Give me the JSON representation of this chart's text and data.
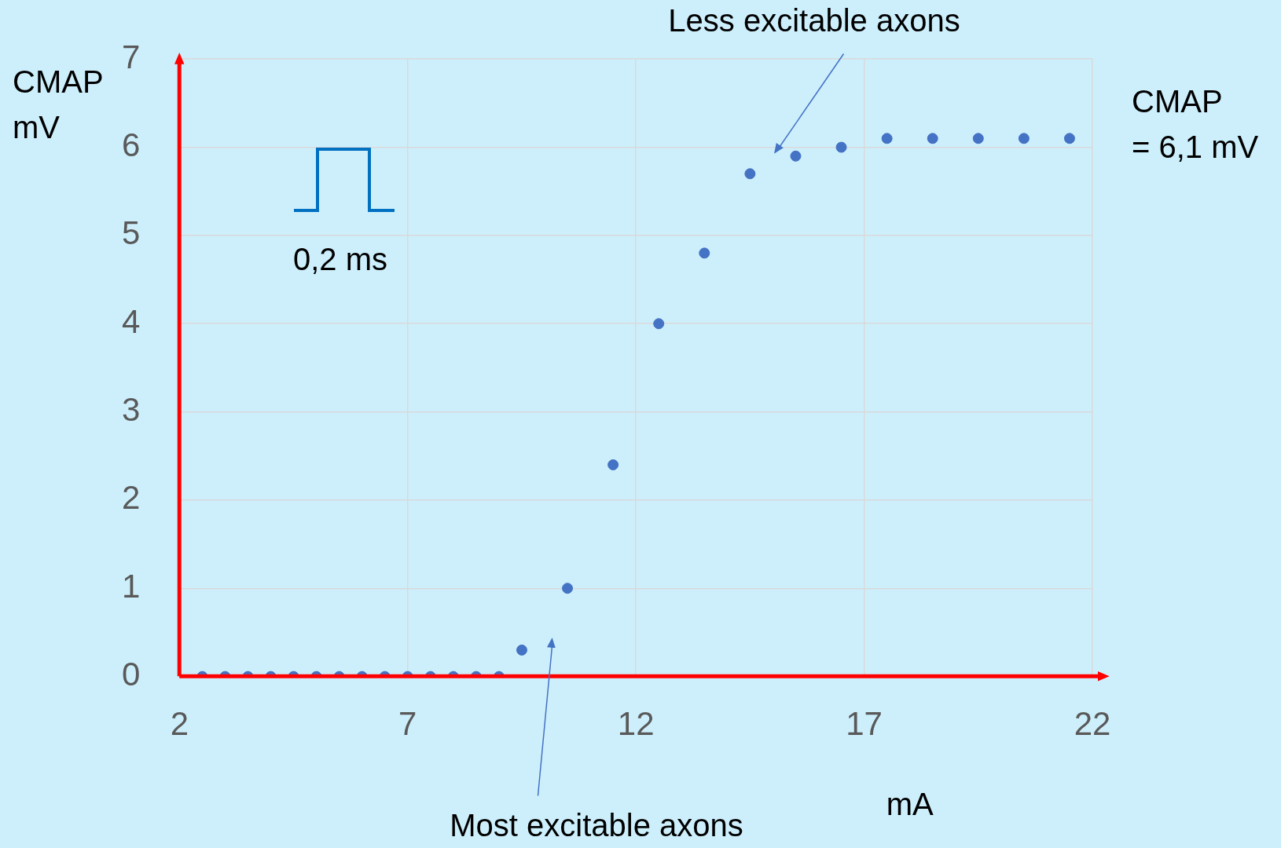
{
  "chart_data": {
    "type": "scatter",
    "xlabel": "mA",
    "ylabel": "CMAP\nmV",
    "x": [
      2.5,
      3,
      3.5,
      4,
      4.5,
      5,
      5.5,
      6,
      6.5,
      7,
      7.5,
      8,
      8.5,
      9,
      9.5,
      10.5,
      11.5,
      12.5,
      13.5,
      14.5,
      15.5,
      16.5,
      17.5,
      18.5,
      19.5,
      20.5,
      21.5
    ],
    "values": [
      0,
      0,
      0,
      0,
      0,
      0,
      0,
      0,
      0,
      0,
      0,
      0,
      0,
      0,
      0.3,
      1,
      2.4,
      4,
      4.8,
      5.7,
      5.9,
      6,
      6.1,
      6.1,
      6.1,
      6.1,
      6.1
    ],
    "color": "#4472c4",
    "marker": "circle",
    "xlim": [
      2,
      22
    ],
    "xticks": [
      2,
      7,
      12,
      17,
      22
    ],
    "ylim": [
      0,
      7
    ],
    "yticks": [
      0,
      1,
      2,
      3,
      4,
      5,
      6,
      7
    ],
    "grid": true,
    "legend": false,
    "annotations": [
      "Less excitable axons",
      "Most excitable axons",
      "CMAP\n= 6,1 mV",
      "0,2 ms"
    ]
  }
}
